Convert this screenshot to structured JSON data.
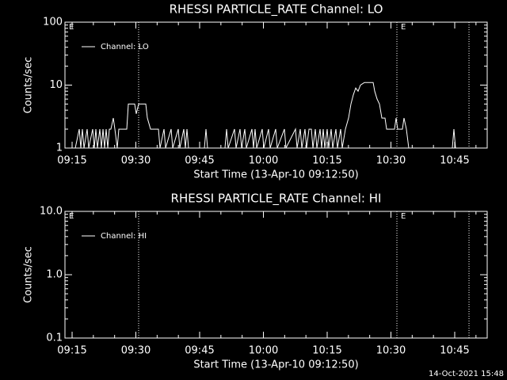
{
  "chart_data": [
    {
      "type": "line",
      "title": "RHESSI PARTICLE_RATE Channel: LO",
      "xlabel": "Start Time (13-Apr-10 09:12:50)",
      "ylabel": "Counts/sec",
      "x": [
        15.75,
        16.68,
        17.05,
        17.42,
        17.8,
        18.54,
        18.91,
        19.84,
        20.22,
        20.59,
        20.96,
        21.52,
        21.89,
        22.27,
        22.64,
        23.01,
        23.39,
        23.76,
        24.13,
        24.69,
        25.06,
        25.62,
        25.99,
        27.86,
        28.23,
        29.72,
        30.09,
        30.65,
        32.33,
        32.7,
        33.45,
        35.31,
        35.68,
        36.62,
        36.99,
        38.29,
        38.67,
        39.97,
        40.34,
        41.27,
        41.65,
        42.02,
        42.39,
        46.12,
        46.49,
        46.86,
        50.96,
        51.34,
        51.71,
        53.2,
        53.57,
        54.5,
        54.88,
        55.62,
        55.99,
        57.3,
        57.67,
        58.04,
        58.42,
        59.72,
        60.09,
        61.21,
        61.59,
        62.89,
        63.26,
        64.94,
        65.31,
        67.55,
        67.92,
        68.67,
        69.04,
        69.78,
        70.16,
        70.72,
        71.28,
        71.65,
        72.21,
        72.58,
        73.33,
        73.7,
        74.07,
        74.44,
        75.0,
        75.37,
        75.93,
        76.31,
        77.05,
        77.42,
        78.17,
        78.54,
        79.29,
        80.03,
        80.59,
        81.15,
        81.71,
        82.27,
        82.83,
        83.76,
        85.81,
        86.18,
        86.74,
        87.3,
        87.86,
        88.6,
        88.98,
        90.84,
        91.21,
        91.58,
        92.7,
        93.07,
        93.63,
        94.19,
        94.94,
        104.44,
        104.81,
        105.19,
        112.08
      ],
      "series": [
        {
          "name": "Channel: LO",
          "color": "#ffffff",
          "values": [
            1,
            2,
            1,
            2,
            1,
            2,
            1,
            2,
            1,
            2,
            1,
            2,
            1,
            2,
            1,
            2,
            1,
            2,
            2,
            3,
            2,
            1,
            2,
            2,
            5,
            5,
            3.5,
            5,
            5,
            3,
            2,
            2,
            1,
            2,
            1,
            2,
            1,
            2,
            1,
            2,
            1,
            2,
            1,
            1,
            2,
            1,
            1,
            2,
            1,
            2,
            1,
            2,
            1,
            2,
            1,
            2,
            1,
            2,
            1,
            2,
            1,
            2,
            1,
            2,
            1,
            2,
            1,
            2,
            1,
            2,
            1,
            2,
            1,
            2,
            2,
            1,
            2,
            1,
            2,
            1,
            2,
            1,
            2,
            1,
            2,
            1,
            2,
            1,
            2,
            1,
            2,
            3,
            5,
            7,
            9,
            8,
            10,
            11,
            11,
            8,
            6,
            5,
            3,
            3,
            2,
            2,
            3,
            2,
            2,
            3,
            2,
            1,
            1,
            1,
            2,
            1,
            1
          ]
        }
      ],
      "xlim": [
        13.32,
        112.64
      ],
      "xticks": [
        {
          "value": 15,
          "label": "09:15"
        },
        {
          "value": 30,
          "label": "09:30"
        },
        {
          "value": 45,
          "label": "09:45"
        },
        {
          "value": 60,
          "label": "10:00"
        },
        {
          "value": 75,
          "label": "10:15"
        },
        {
          "value": 90,
          "label": "10:30"
        },
        {
          "value": 105,
          "label": "10:45"
        }
      ],
      "ylim": [
        1,
        100
      ],
      "yticks": [
        1,
        10,
        100
      ],
      "log_y": true,
      "markers": [
        30.65,
        91.4,
        108.36
      ],
      "annotations": [
        {
          "text": "E",
          "x": 13.88
        },
        {
          "text": "E",
          "x": 91.96
        }
      ],
      "legend": "top-left"
    },
    {
      "type": "line",
      "title": "RHESSI PARTICLE_RATE Channel: HI",
      "xlabel": "Start Time (13-Apr-10 09:12:50)",
      "ylabel": "Counts/sec",
      "x": [],
      "series": [
        {
          "name": "Channel: HI",
          "color": "#ffffff",
          "values": []
        }
      ],
      "xlim": [
        13.32,
        112.64
      ],
      "xticks": [
        {
          "value": 15,
          "label": "09:15"
        },
        {
          "value": 30,
          "label": "09:30"
        },
        {
          "value": 45,
          "label": "09:45"
        },
        {
          "value": 60,
          "label": "10:00"
        },
        {
          "value": 75,
          "label": "10:15"
        },
        {
          "value": 90,
          "label": "10:30"
        },
        {
          "value": 105,
          "label": "10:45"
        }
      ],
      "ylim": [
        0.1,
        10
      ],
      "yticks": [
        {
          "value": 0.1,
          "label": "0.1"
        },
        {
          "value": 1,
          "label": "1.0"
        },
        {
          "value": 10,
          "label": "10.0"
        }
      ],
      "log_y": true,
      "markers": [
        30.65,
        91.4,
        108.36
      ],
      "annotations": [
        {
          "text": "E",
          "x": 13.88
        },
        {
          "text": "E",
          "x": 91.96
        }
      ],
      "legend": "top-left"
    }
  ],
  "footer": "14-Oct-2021 15:48"
}
